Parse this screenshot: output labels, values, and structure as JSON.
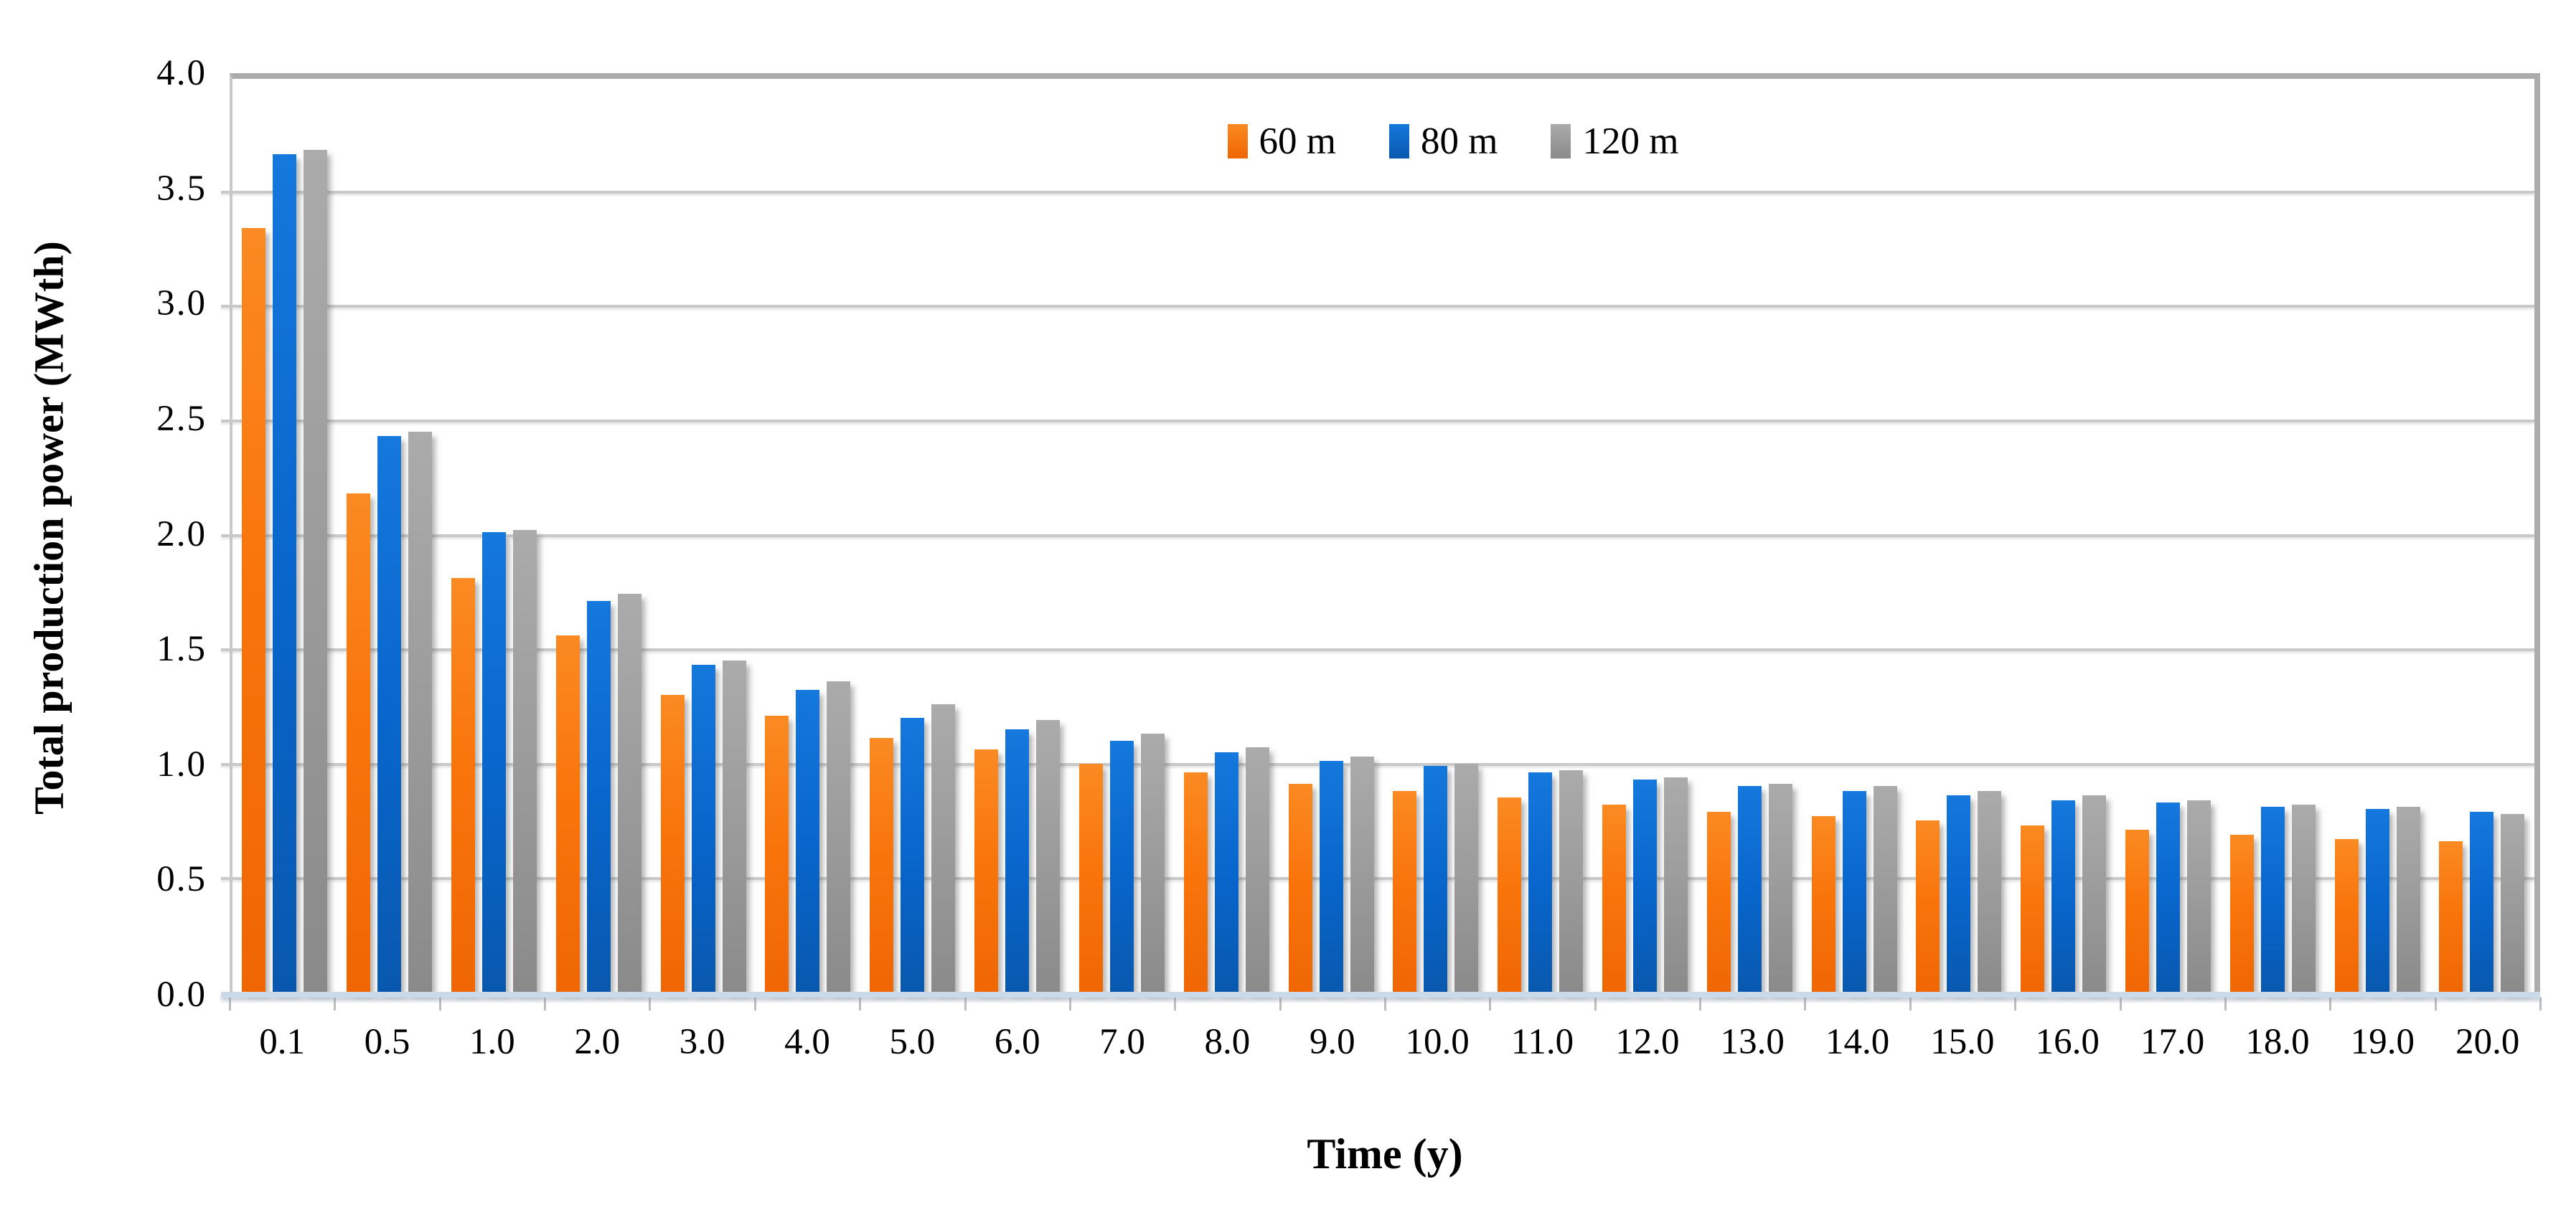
{
  "figure": {
    "y_axis": {
      "title": "Total production power (MWth)",
      "tick_labels": [
        "4.0",
        "3.5",
        "3.0",
        "2.5",
        "2.0",
        "1.5",
        "1.0",
        "0.5",
        "0.0"
      ],
      "min": 0.0,
      "max": 4.0,
      "step": 0.5
    },
    "x_axis": {
      "title": "Time (y)"
    },
    "colors": {
      "series_60m": "#f9750b",
      "series_80m": "#0866cc",
      "series_120m": "#9b9b9b",
      "gridline": "#c9c9c9",
      "plot_border": "#acacac",
      "axis_line": "#cbdaea"
    }
  },
  "chart_data": {
    "type": "bar",
    "title": "",
    "xlabel": "Time (y)",
    "ylabel": "Total production power (MWth)",
    "ylim": [
      0.0,
      4.0
    ],
    "ytick_step": 0.5,
    "grid": true,
    "legend_position": "top-center-inside",
    "categories": [
      "0.1",
      "0.5",
      "1.0",
      "2.0",
      "3.0",
      "4.0",
      "5.0",
      "6.0",
      "7.0",
      "8.0",
      "9.0",
      "10.0",
      "11.0",
      "12.0",
      "13.0",
      "14.0",
      "15.0",
      "16.0",
      "17.0",
      "18.0",
      "19.0",
      "20.0"
    ],
    "series": [
      {
        "name": "60 m",
        "values": [
          3.35,
          2.19,
          1.82,
          1.57,
          1.31,
          1.22,
          1.12,
          1.07,
          1.01,
          0.97,
          0.92,
          0.89,
          0.86,
          0.83,
          0.8,
          0.78,
          0.76,
          0.74,
          0.72,
          0.7,
          0.68,
          0.67
        ]
      },
      {
        "name": "80 m",
        "values": [
          3.67,
          2.44,
          2.02,
          1.72,
          1.44,
          1.33,
          1.21,
          1.16,
          1.11,
          1.06,
          1.02,
          1.0,
          0.97,
          0.94,
          0.91,
          0.89,
          0.87,
          0.85,
          0.84,
          0.82,
          0.81,
          0.8
        ]
      },
      {
        "name": "120 m",
        "values": [
          3.69,
          2.46,
          2.03,
          1.75,
          1.46,
          1.37,
          1.27,
          1.2,
          1.14,
          1.08,
          1.04,
          1.01,
          0.98,
          0.95,
          0.92,
          0.91,
          0.89,
          0.87,
          0.85,
          0.83,
          0.82,
          0.79
        ]
      }
    ]
  }
}
